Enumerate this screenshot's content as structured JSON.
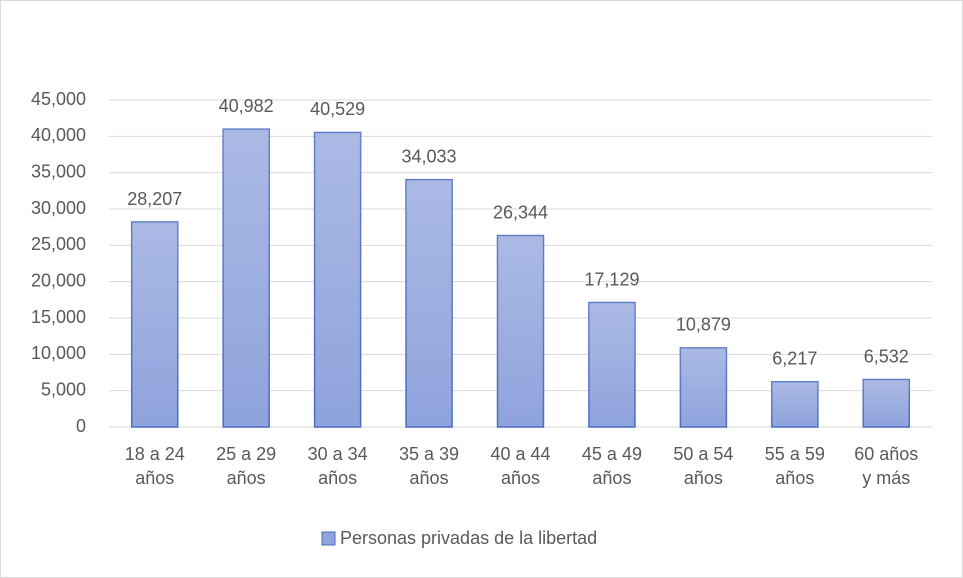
{
  "chart_data": {
    "type": "bar",
    "categories": [
      [
        "18 a 24",
        "años"
      ],
      [
        "25 a 29",
        "años"
      ],
      [
        "30 a 34",
        "años"
      ],
      [
        "35 a 39",
        "años"
      ],
      [
        "40 a 44",
        "años"
      ],
      [
        "45 a 49",
        "años"
      ],
      [
        "50 a 54",
        "años"
      ],
      [
        "55 a 59",
        "años"
      ],
      [
        "60 años",
        "y más"
      ]
    ],
    "series": [
      {
        "name": "Personas privadas de la libertad",
        "color": "#8fa3dc",
        "values": [
          28207,
          40982,
          40529,
          34033,
          26344,
          17129,
          10879,
          6217,
          6532
        ],
        "value_labels": [
          "28,207",
          "40,982",
          "40,529",
          "34,033",
          "26,344",
          "17,129",
          "10,879",
          "6,217",
          "6,532"
        ]
      }
    ],
    "ylim": [
      0,
      45000
    ],
    "yticks": [
      0,
      {
        "value": 5000,
        "label": "5,000"
      },
      {
        "value": 10000,
        "label": "10,000"
      },
      {
        "value": 15000,
        "label": "15,000"
      },
      {
        "value": 20000,
        "label": "20,000"
      },
      {
        "value": 25000,
        "label": "25,000"
      },
      {
        "value": 30000,
        "label": "30,000"
      },
      {
        "value": 35000,
        "label": "35,000"
      },
      {
        "value": 40000,
        "label": "40,000"
      },
      {
        "value": 45000,
        "label": "45,000"
      }
    ],
    "grid": true,
    "legend": "bottom"
  }
}
